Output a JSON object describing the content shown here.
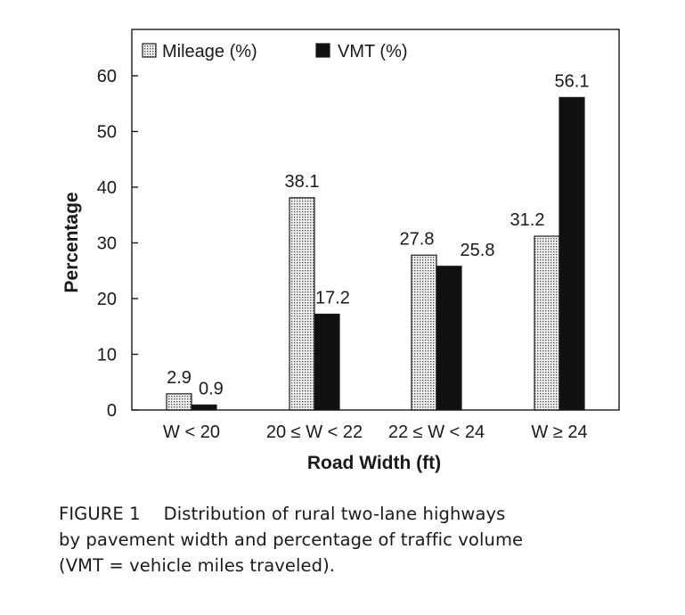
{
  "chart_data": {
    "type": "bar",
    "categories": [
      "W < 20",
      "20 ≤ W < 22",
      "22 ≤ W < 24",
      "W ≥ 24"
    ],
    "series": [
      {
        "name": "Mileage (%)",
        "values": [
          2.9,
          38.1,
          27.8,
          31.2
        ],
        "pattern": "dotted"
      },
      {
        "name": "VMT (%)",
        "values": [
          0.9,
          17.2,
          25.8,
          56.1
        ],
        "color": "#111111"
      }
    ],
    "data_labels": [
      [
        "2.9",
        "38.1",
        "27.8",
        "31.2"
      ],
      [
        "0.9",
        "17.2",
        "25.8",
        "56.1"
      ]
    ],
    "xlabel": "Road Width (ft)",
    "ylabel": "Percentage",
    "ylim": [
      0,
      60
    ],
    "yticks": [
      0,
      10,
      20,
      30,
      40,
      50,
      60
    ],
    "ytick_labels": [
      "0",
      "10",
      "20",
      "30",
      "40",
      "50",
      "60"
    ],
    "grid": false,
    "legend": "top-left"
  },
  "caption": {
    "label": "FIGURE 1",
    "lines": [
      "Distribution of rural two-lane highways",
      "by pavement width and percentage of traffic volume",
      "(VMT = vehicle miles traveled)."
    ]
  }
}
